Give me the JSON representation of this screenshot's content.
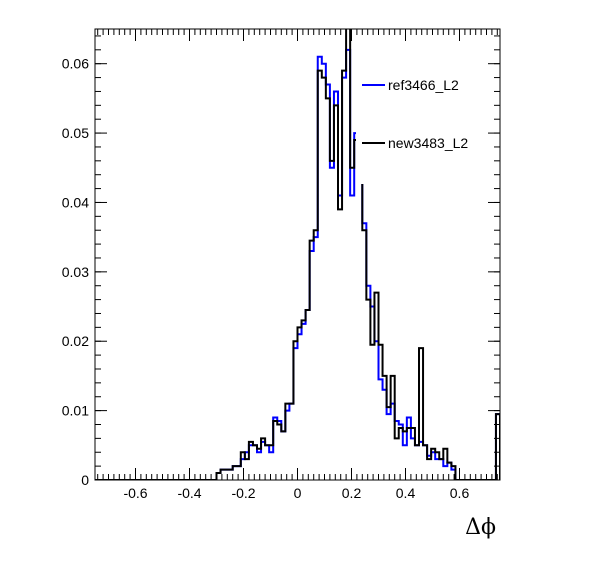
{
  "chart_data": {
    "type": "histogram-step",
    "title": "",
    "xlabel": "Δϕ",
    "ylabel": "",
    "xlim": [
      -0.75,
      0.75
    ],
    "ylim": [
      0,
      0.065
    ],
    "xticks": [
      -0.6,
      -0.4,
      -0.2,
      0,
      0.2,
      0.4,
      0.6
    ],
    "xtick_labels": [
      "-0.6",
      "-0.4",
      "-0.2",
      "0",
      "0.2",
      "0.4",
      "0.6"
    ],
    "yticks": [
      0,
      0.01,
      0.02,
      0.03,
      0.04,
      0.05,
      0.06
    ],
    "ytick_labels": [
      "0",
      "0.01",
      "0.02",
      "0.03",
      "0.04",
      "0.05",
      "0.06"
    ],
    "legend_position": "top-right",
    "bins": {
      "low": -0.75,
      "high": 0.75,
      "width": 0.015
    },
    "series": [
      {
        "name": "ref3466_L2",
        "color": "#0000ff",
        "values": [
          0,
          0,
          0,
          0,
          0,
          0,
          0,
          0,
          0,
          0,
          0,
          0,
          0,
          0,
          0,
          0,
          0,
          0,
          0,
          0,
          0,
          0,
          0,
          0,
          0,
          0,
          0,
          0,
          0,
          0,
          0.001,
          0.0015,
          0.0015,
          0.0015,
          0.002,
          0.002,
          0.003,
          0.004,
          0.005,
          0.005,
          0.004,
          0.0055,
          0.005,
          0.004,
          0.009,
          0.0085,
          0.007,
          0.01,
          0.011,
          0.019,
          0.021,
          0.0225,
          0.0245,
          0.033,
          0.035,
          0.061,
          0.06,
          0.057,
          0.045,
          0.056,
          0.041,
          0.058,
          0.062,
          0.041,
          0.05,
          0.052,
          0.037,
          0.028,
          0.025,
          0.02,
          0.0145,
          0.013,
          0.0095,
          0.011,
          0.0085,
          0.008,
          0.005,
          0.009,
          0.006,
          0.005,
          0.0055,
          0.005,
          0.0035,
          0.004,
          0.003,
          0.003,
          0.002,
          0.0025,
          0.0015,
          0,
          0,
          0,
          0,
          0,
          0,
          0,
          0,
          0,
          0,
          0.0095
        ]
      },
      {
        "name": "new3483_L2",
        "color": "#000000",
        "values": [
          0,
          0,
          0,
          0,
          0,
          0,
          0,
          0,
          0,
          0,
          0,
          0,
          0,
          0,
          0,
          0,
          0,
          0,
          0,
          0,
          0,
          0,
          0,
          0,
          0,
          0,
          0,
          0,
          0,
          0,
          0.001,
          0.0015,
          0.0015,
          0.0015,
          0.002,
          0.002,
          0.004,
          0.003,
          0.0055,
          0.005,
          0.0045,
          0.006,
          0.005,
          0.005,
          0.0085,
          0.008,
          0.007,
          0.011,
          0.011,
          0.02,
          0.022,
          0.023,
          0.0245,
          0.0345,
          0.036,
          0.059,
          0.058,
          0.055,
          0.046,
          0.054,
          0.039,
          0.059,
          0.068,
          0.045,
          0.049,
          0.05,
          0.036,
          0.026,
          0.0195,
          0.027,
          0.0195,
          0.015,
          0.0105,
          0.015,
          0.006,
          0.0075,
          0.007,
          0.0075,
          0.0075,
          0.005,
          0.019,
          0.005,
          0.003,
          0.0045,
          0.004,
          0.003,
          0.0045,
          0.0025,
          0.002,
          0,
          0,
          0,
          0,
          0,
          0,
          0,
          0,
          0,
          0,
          0.0095
        ]
      }
    ]
  }
}
